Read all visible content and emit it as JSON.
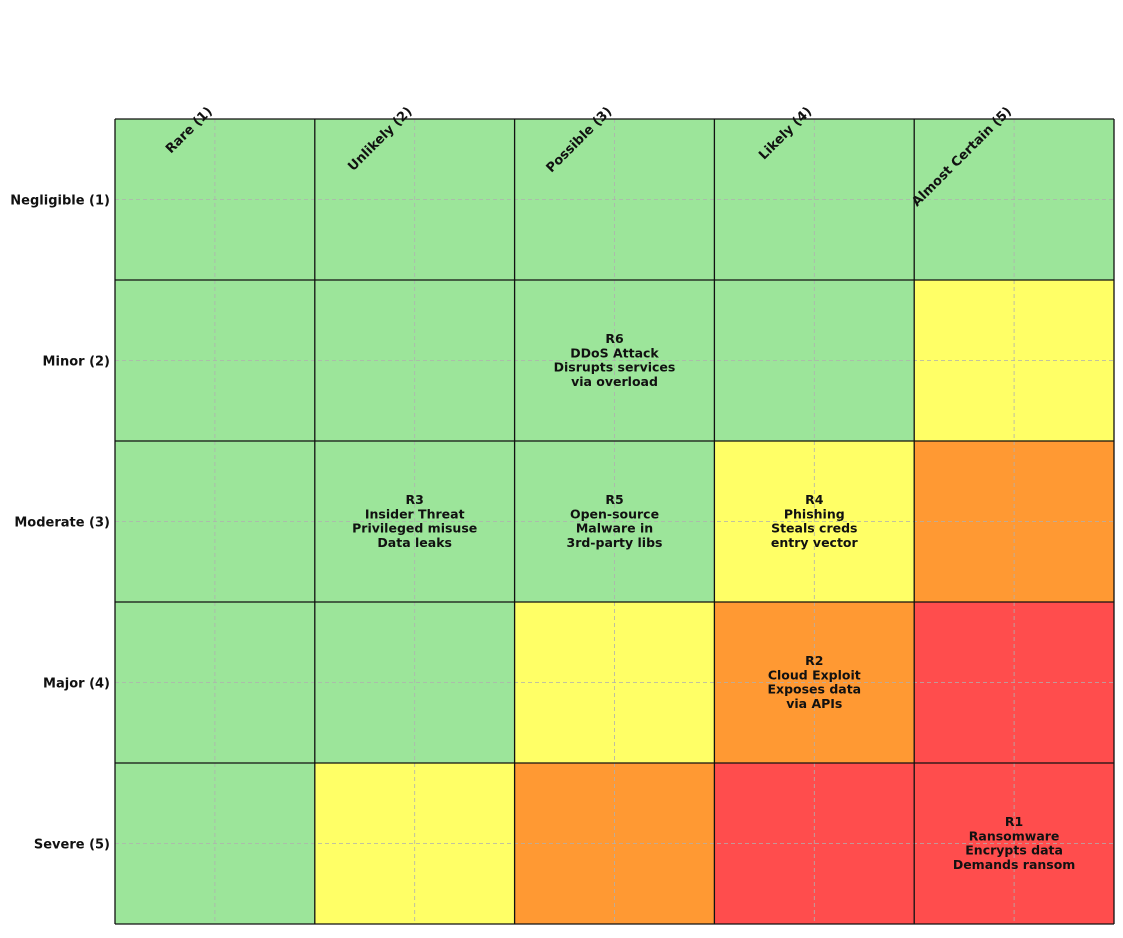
{
  "chart_data": {
    "type": "heatmap",
    "title": "",
    "xlabel": "",
    "ylabel": "",
    "x_categories": [
      "Rare (1)",
      "Unlikely (2)",
      "Possible (3)",
      "Likely (4)",
      "Almost Certain (5)"
    ],
    "y_categories": [
      "Negligible (1)",
      "Minor (2)",
      "Moderate (3)",
      "Major (4)",
      "Severe (5)"
    ],
    "grid": true,
    "palette": {
      "low": "#9ce59a",
      "medium": "#ffff66",
      "high": "#ff9933",
      "critical": "#ff4d4d"
    },
    "cell_levels": [
      [
        "low",
        "low",
        "low",
        "low",
        "low"
      ],
      [
        "low",
        "low",
        "low",
        "low",
        "medium"
      ],
      [
        "low",
        "low",
        "low",
        "medium",
        "high"
      ],
      [
        "low",
        "low",
        "medium",
        "high",
        "critical"
      ],
      [
        "low",
        "medium",
        "high",
        "critical",
        "critical"
      ]
    ],
    "risks": [
      {
        "id": "R1",
        "likelihood": 5,
        "impact": 5,
        "lines": [
          "R1",
          "Ransomware",
          "Encrypts data",
          "Demands ransom"
        ]
      },
      {
        "id": "R2",
        "likelihood": 4,
        "impact": 4,
        "lines": [
          "R2",
          "Cloud Exploit",
          "Exposes data",
          "via APIs"
        ]
      },
      {
        "id": "R3",
        "likelihood": 2,
        "impact": 3,
        "lines": [
          "R3",
          "Insider Threat",
          "Privileged misuse",
          "Data leaks"
        ]
      },
      {
        "id": "R4",
        "likelihood": 4,
        "impact": 3,
        "lines": [
          "R4",
          "Phishing",
          "Steals creds",
          "entry vector"
        ]
      },
      {
        "id": "R5",
        "likelihood": 3,
        "impact": 3,
        "lines": [
          "R5",
          "Open-source",
          "Malware in",
          "3rd-party libs"
        ]
      },
      {
        "id": "R6",
        "likelihood": 3,
        "impact": 2,
        "lines": [
          "R6",
          "DDoS Attack",
          "Disrupts services",
          "via overload"
        ]
      }
    ]
  }
}
